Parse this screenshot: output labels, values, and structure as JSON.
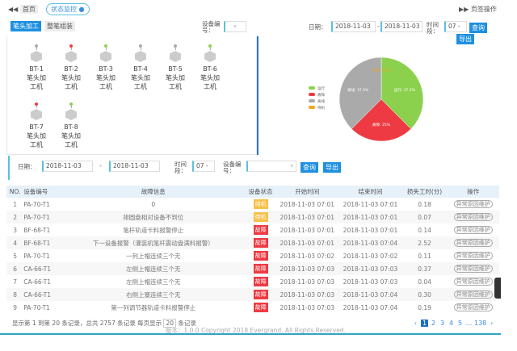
{
  "topbar": {
    "home": "首页",
    "active_tab": "状态监控",
    "tab_ops": "页签操作"
  },
  "toolbar": {
    "tabs": [
      "笔头加工",
      "整笔组装"
    ],
    "device_label": "设备编号：",
    "date_label": "日期：",
    "date_from": "2018-11-03",
    "date_to": "2018-11-03",
    "time_label": "时间段：",
    "time_value": "07 - 08",
    "query": "查询",
    "export": "导出"
  },
  "devices": [
    {
      "id": "BT-1",
      "name": "笔头加工机",
      "status": "gray"
    },
    {
      "id": "BT-2",
      "name": "笔头加工机",
      "status": "red"
    },
    {
      "id": "BT-3",
      "name": "笔头加工机",
      "status": "green"
    },
    {
      "id": "BT-4",
      "name": "笔头加工机",
      "status": "gray"
    },
    {
      "id": "BT-5",
      "name": "笔头加工机",
      "status": "gray"
    },
    {
      "id": "BT-6",
      "name": "笔头加工机",
      "status": "green"
    },
    {
      "id": "BT-7",
      "name": "笔头加工机",
      "status": "red"
    },
    {
      "id": "BT-8",
      "name": "笔头加工机",
      "status": "green"
    }
  ],
  "status_colors": {
    "green": "#8cd14e",
    "red": "#ee3b43",
    "gray": "#aaaaaa",
    "orange": "#f5a623"
  },
  "chart_data": {
    "type": "pie",
    "legend": [
      "运行",
      "故障",
      "离线",
      "待机"
    ],
    "legend_position": "left",
    "slices": [
      {
        "name": "运行",
        "value": 37.5,
        "label": "运行: 37.5%",
        "color": "#8cd14e"
      },
      {
        "name": "故障",
        "value": 25,
        "label": "故障: 25%",
        "color": "#ee3b43"
      },
      {
        "name": "离线",
        "value": 37.5,
        "label": "离线: 37.5%",
        "color": "#aaaaaa"
      },
      {
        "name": "待机",
        "value": 0,
        "label": "待机: 0.0%",
        "color": "#f5a623"
      }
    ]
  },
  "filter": {
    "date_label": "日期：",
    "date_from": "2018-11-03",
    "date_to": "2018-11-03",
    "time_label": "时间段：",
    "time_value": "07 - 08",
    "device_label": "设备编号：",
    "query": "查询",
    "export": "导出"
  },
  "table": {
    "headers": [
      "NO.",
      "设备编号",
      "故障信息",
      "设备状态",
      "开始时间",
      "结束时间",
      "损失工时(分)",
      "操作"
    ],
    "rows": [
      [
        "1",
        "PA-70-T1",
        "0",
        "待机",
        "2018-11-03 07:01",
        "2018-11-03 07:01",
        "0.18",
        "异常原因维护"
      ],
      [
        "2",
        "PA-70-T1",
        "排圆盘相对设备不到位",
        "待机",
        "2018-11-03 07:01",
        "2018-11-03 07:01",
        "0.07",
        "异常原因维护"
      ],
      [
        "3",
        "BF-68-T1",
        "笔杆轨道卡料报警停止",
        "故障",
        "2018-11-03 07:01",
        "2018-11-03 07:01",
        "0.14",
        "异常原因维护"
      ],
      [
        "4",
        "BF-68-T1",
        "下一设备报警（灌装机笔杆震动盘满料报警）",
        "故障",
        "2018-11-03 07:01",
        "2018-11-03 07:04",
        "2.52",
        "异常原因维护"
      ],
      [
        "5",
        "PA-70-T1",
        "一列上帽连续三个无",
        "故障",
        "2018-11-03 07:02",
        "2018-11-03 07:02",
        "0.11",
        "异常原因维护"
      ],
      [
        "6",
        "CA-66-T1",
        "左侧上帽连续三个无",
        "故障",
        "2018-11-03 07:03",
        "2018-11-03 07:03",
        "0.37",
        "异常原因维护"
      ],
      [
        "7",
        "CA-66-T1",
        "左侧上帽连续三个无",
        "故障",
        "2018-11-03 07:03",
        "2018-11-03 07:03",
        "0.04",
        "异常原因维护"
      ],
      [
        "8",
        "CA-66-T1",
        "右侧上塞连续三个无",
        "故障",
        "2018-11-03 07:03",
        "2018-11-03 07:04",
        "0.30",
        "异常原因维护"
      ],
      [
        "9",
        "PA-70-T1",
        "第一列调节器轨道卡料报警停止",
        "故障",
        "2018-11-03 07:03",
        "2018-11-03 07:04",
        "0.19",
        "异常原因维护"
      ]
    ]
  },
  "footer": {
    "summary": "显示第 1 到第 20 条记录，总共 2757 条记录 每页显示",
    "page_size": "20",
    "summary_tail": "条记录",
    "pages": [
      "‹",
      "1",
      "2",
      "3",
      "4",
      "5",
      "...",
      "138",
      "›"
    ],
    "current_page": "1",
    "copyright": "版本：1.0.0 Copyright 2018 Evergrand. All Rights Reserved."
  }
}
